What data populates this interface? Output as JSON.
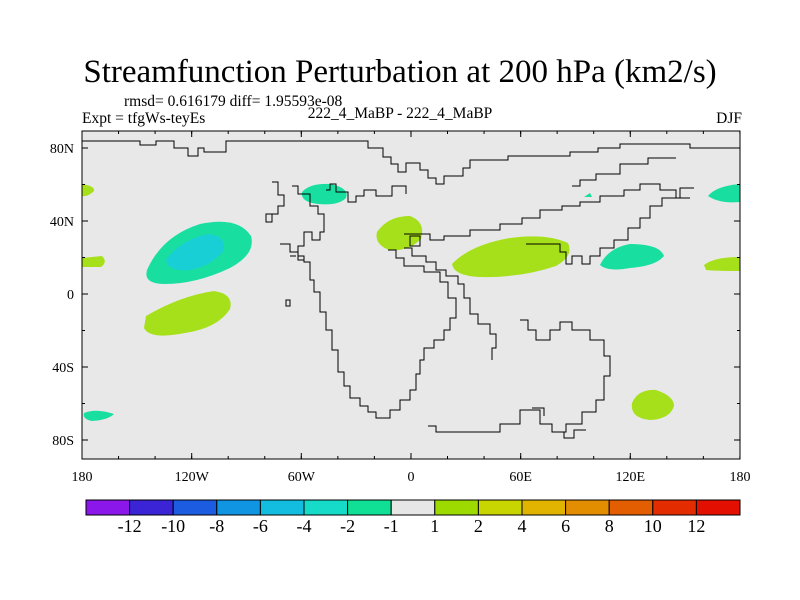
{
  "title": "Streamfunction Perturbation at 200 hPa (km2/s)",
  "stats_line": "rmsd= 0.616179 diff= 1.95593e-08",
  "experiment_line": "Expt = tfgWs-teyEs",
  "case_line": "222_4_MaBP - 222_4_MaBP",
  "season": "DJF",
  "map": {
    "lon_ticks": [
      "180",
      "120W",
      "60W",
      "0",
      "60E",
      "120E",
      "180"
    ],
    "lat_ticks": [
      "80N",
      "40N",
      "0",
      "40S",
      "80S"
    ],
    "background_color": "#e8e8e8"
  },
  "colorbar": {
    "colors": [
      "#8c17eb",
      "#3a24d6",
      "#1c5ce0",
      "#1095e3",
      "#12bde0",
      "#15dbc8",
      "#10e096",
      "#e6e6e6",
      "#9ddb00",
      "#c8d500",
      "#e0b400",
      "#e38d00",
      "#e35e00",
      "#e32d00",
      "#e30f00"
    ],
    "labels": [
      "-12",
      "-10",
      "-8",
      "-6",
      "-4",
      "-2",
      "-1",
      "1",
      "2",
      "4",
      "6",
      "8",
      "10",
      "12"
    ]
  },
  "fill_colors": {
    "light_green": "#a6e01a",
    "teal": "#18dfa0",
    "cyan": "#18cfd6"
  }
}
